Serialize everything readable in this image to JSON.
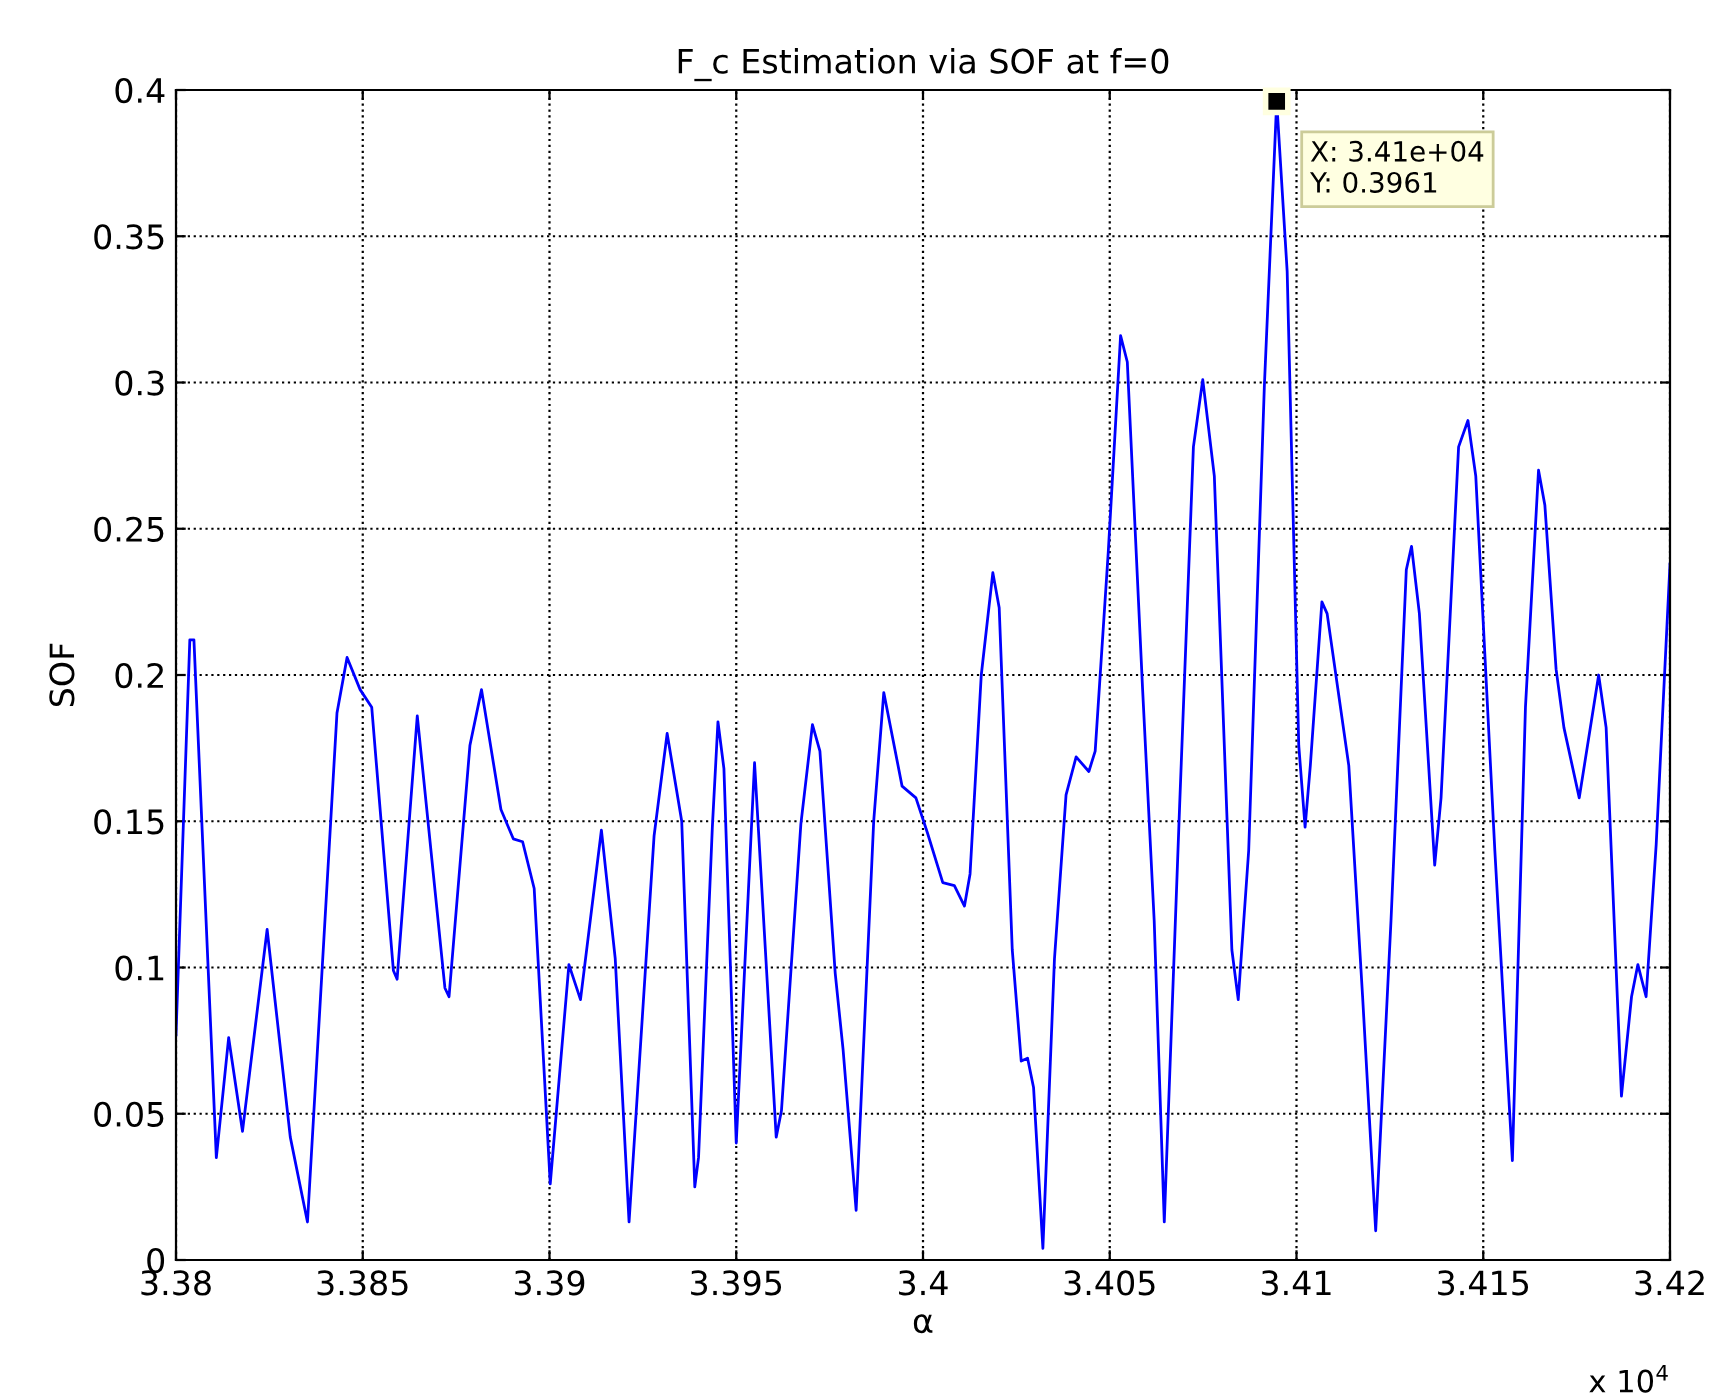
{
  "chart_data": {
    "type": "line",
    "title": "F_c Estimation via SOF at f=0",
    "xlabel": "α",
    "ylabel": "SOF",
    "series": [
      {
        "color": "#0000ff",
        "x": [
          3.38,
          3.38037,
          3.38048,
          3.38108,
          3.38141,
          3.38178,
          3.38244,
          3.38306,
          3.38352,
          3.38431,
          3.38458,
          3.38493,
          3.38524,
          3.38582,
          3.38592,
          3.38646,
          3.3872,
          3.38731,
          3.38787,
          3.38818,
          3.3887,
          3.38903,
          3.38928,
          3.38959,
          3.39002,
          3.39052,
          3.39083,
          3.39139,
          3.39176,
          3.39213,
          3.3928,
          3.39315,
          3.39354,
          3.39389,
          3.39399,
          3.39436,
          3.39451,
          3.39467,
          3.395,
          3.39549,
          3.39607,
          3.39621,
          3.39673,
          3.39704,
          3.39724,
          3.39765,
          3.39786,
          3.39821,
          3.39868,
          3.39895,
          3.39944,
          3.39981,
          3.40012,
          3.40053,
          3.40084,
          3.40111,
          3.40126,
          3.40156,
          3.40187,
          3.40204,
          3.40239,
          3.40263,
          3.4028,
          3.40296,
          3.40321,
          3.40352,
          3.40383,
          3.4041,
          3.40444,
          3.40461,
          3.40496,
          3.40529,
          3.40547,
          3.40588,
          3.40619,
          3.40646,
          3.40687,
          3.40724,
          3.40749,
          3.4078,
          3.40827,
          3.40844,
          3.40872,
          3.40914,
          3.40947,
          3.40975,
          3.41006,
          3.41023,
          3.41037,
          3.41068,
          3.41082,
          3.4114,
          3.41177,
          3.41212,
          3.41253,
          3.41294,
          3.41308,
          3.41329,
          3.4137,
          3.41387,
          3.41434,
          3.41459,
          3.4148,
          3.41531,
          3.41578,
          3.41613,
          3.41648,
          3.41665,
          3.41695,
          3.41716,
          3.41757,
          3.41809,
          3.41829,
          3.4187,
          3.41897,
          3.41914,
          3.41936,
          3.41963,
          3.42
        ],
        "values": [
          0.077,
          0.212,
          0.212,
          0.035,
          0.076,
          0.044,
          0.113,
          0.042,
          0.013,
          0.187,
          0.206,
          0.195,
          0.189,
          0.099,
          0.096,
          0.186,
          0.093,
          0.09,
          0.176,
          0.195,
          0.154,
          0.144,
          0.143,
          0.127,
          0.026,
          0.101,
          0.089,
          0.147,
          0.103,
          0.013,
          0.145,
          0.18,
          0.15,
          0.025,
          0.035,
          0.148,
          0.184,
          0.168,
          0.04,
          0.17,
          0.042,
          0.051,
          0.149,
          0.183,
          0.174,
          0.098,
          0.072,
          0.017,
          0.15,
          0.194,
          0.162,
          0.158,
          0.146,
          0.129,
          0.128,
          0.121,
          0.132,
          0.2,
          0.235,
          0.223,
          0.106,
          0.068,
          0.069,
          0.059,
          0.004,
          0.103,
          0.159,
          0.172,
          0.167,
          0.174,
          0.242,
          0.316,
          0.307,
          0.195,
          0.116,
          0.013,
          0.155,
          0.278,
          0.301,
          0.268,
          0.106,
          0.089,
          0.14,
          0.299,
          0.3961,
          0.338,
          0.176,
          0.148,
          0.169,
          0.225,
          0.221,
          0.169,
          0.09,
          0.01,
          0.116,
          0.236,
          0.244,
          0.221,
          0.135,
          0.158,
          0.278,
          0.287,
          0.268,
          0.14,
          0.034,
          0.189,
          0.27,
          0.258,
          0.202,
          0.182,
          0.158,
          0.2,
          0.182,
          0.056,
          0.09,
          0.101,
          0.09,
          0.142,
          0.238
        ]
      }
    ],
    "xlim": [
      3.38,
      3.42
    ],
    "xticks": [
      3.38,
      3.385,
      3.39,
      3.395,
      3.4,
      3.405,
      3.41,
      3.415,
      3.42
    ],
    "ylim": [
      0,
      0.4
    ],
    "yticks": [
      0,
      0.05,
      0.1,
      0.15,
      0.2,
      0.25,
      0.3,
      0.35,
      0.4
    ],
    "grid": true,
    "line_style": "solid",
    "marker": "none",
    "annotations": [
      {
        "text": "X: 3.41e+04\nY: 0.3961",
        "x": 3.40947,
        "y": 0.3961
      },
      "x 10$^{4}$"
    ]
  }
}
